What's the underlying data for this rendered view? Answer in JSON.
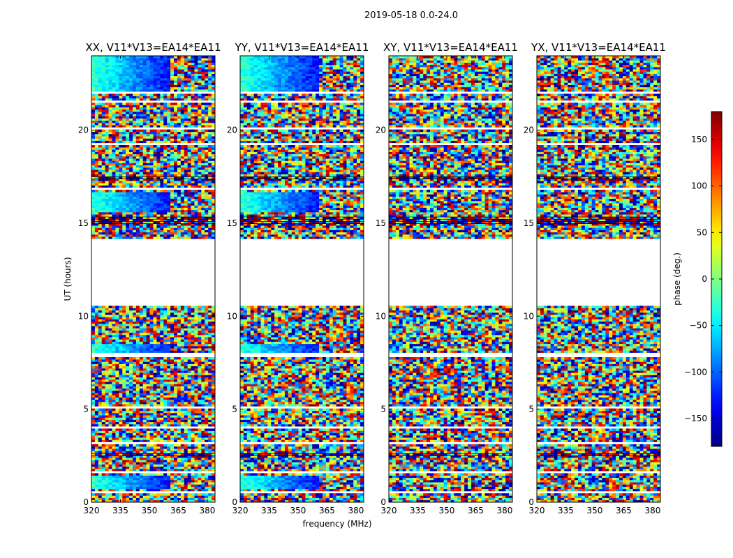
{
  "figure": {
    "title": "2019-05-18 0.0-24.0"
  },
  "chart_data": {
    "type": "heatmap",
    "xlabel": "frequency (MHz)",
    "ylabel": "UT (hours)",
    "xlim": [
      320,
      384
    ],
    "ylim": [
      0,
      24
    ],
    "x_ticks": [
      "320",
      "335",
      "350",
      "365",
      "380"
    ],
    "y_ticks": [
      "0",
      "5",
      "10",
      "15",
      "20"
    ],
    "colormap": "jet",
    "colorbar": {
      "label": "phase (deg.)",
      "range": [
        -180,
        180
      ],
      "ticks": [
        "150",
        "100",
        "50",
        "0",
        "−50",
        "−100",
        "−150"
      ]
    },
    "no_data_gaps_ut_hours": [
      [
        10.5,
        14.1
      ]
    ],
    "panels": [
      {
        "title": "XX, V11*V13=EA14*EA11",
        "polarization": "XX",
        "coherent_low_freq_phase": true
      },
      {
        "title": "YY, V11*V13=EA14*EA11",
        "polarization": "YY",
        "coherent_low_freq_phase": true
      },
      {
        "title": "XY, V11*V13=EA14*EA11",
        "polarization": "XY",
        "coherent_low_freq_phase": false
      },
      {
        "title": "YX, V11*V13=EA14*EA11",
        "polarization": "YX",
        "coherent_low_freq_phase": false
      }
    ],
    "grid": false
  }
}
